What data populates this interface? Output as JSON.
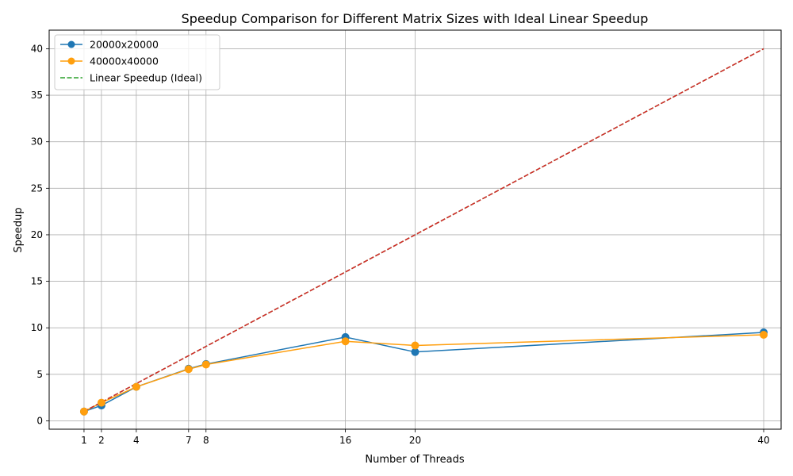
{
  "chart_data": {
    "type": "line",
    "title": "Speedup Comparison for Different Matrix Sizes with Ideal Linear Speedup",
    "xlabel": "Number of Threads",
    "ylabel": "Speedup",
    "x": [
      1,
      2,
      4,
      7,
      8,
      16,
      20,
      40
    ],
    "xticks": [
      "1",
      "2",
      "4",
      "7",
      "8",
      "16",
      "20",
      "40"
    ],
    "yticks": [
      "0",
      "5",
      "10",
      "15",
      "20",
      "25",
      "30",
      "35",
      "40"
    ],
    "xlim": [
      -1,
      41
    ],
    "ylim": [
      -0.9,
      42
    ],
    "grid": true,
    "legend_position": "top-left",
    "series": [
      {
        "name": "20000x20000",
        "color": "#1f77b4",
        "style": "solid",
        "marker": "circle",
        "values": [
          1.0,
          1.65,
          3.65,
          5.6,
          6.1,
          9.0,
          7.4,
          9.5
        ]
      },
      {
        "name": "40000x40000",
        "color": "#ff9f0e",
        "style": "solid",
        "marker": "circle",
        "values": [
          1.0,
          1.95,
          3.65,
          5.55,
          6.05,
          8.55,
          8.1,
          9.25
        ]
      },
      {
        "name": "Linear Speedup (Ideal)",
        "color": "#2ca02c",
        "style": "dashed",
        "marker": "none",
        "values": [
          1,
          2,
          4,
          7,
          8,
          16,
          20,
          40
        ]
      }
    ],
    "overlay_line": {
      "color": "#d62728",
      "style": "dashed",
      "values": [
        1,
        2,
        4,
        7,
        8,
        16,
        20,
        40
      ]
    }
  }
}
